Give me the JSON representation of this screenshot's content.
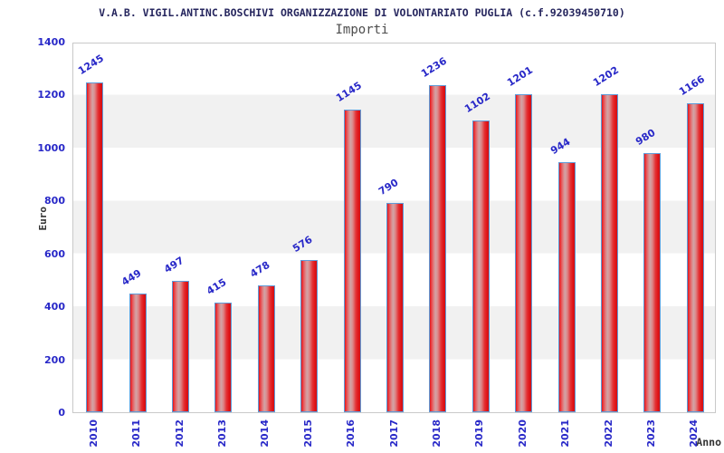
{
  "header": {
    "title": "V.A.B. VIGIL.ANTINC.BOSCHIVI ORGANIZZAZIONE DI VOLONTARIATO PUGLIA (c.f.92039450710)",
    "subtitle": "Importi"
  },
  "chart_data": {
    "type": "bar",
    "title": "Importi",
    "categories": [
      "2010",
      "2011",
      "2012",
      "2013",
      "2014",
      "2015",
      "2016",
      "2017",
      "2018",
      "2019",
      "2020",
      "2021",
      "2022",
      "2023",
      "2024"
    ],
    "values": [
      1245,
      449,
      497,
      415,
      478,
      576,
      1145,
      790,
      1236,
      1102,
      1201,
      944,
      1202,
      980,
      1166
    ],
    "xlabel": "Anno",
    "ylabel": "Euro",
    "ylim": [
      0,
      1400
    ],
    "yticks": [
      0,
      200,
      400,
      600,
      800,
      1000,
      1200,
      1400
    ],
    "grid": "alternating horizontal bands, no vertical gridlines",
    "legend_position": "none",
    "bar_labels_rotation_deg": -32,
    "x_tick_rotation_deg": -90
  },
  "colors": {
    "title_text": "#26265e",
    "subtitle_text": "#4d4d4d",
    "tick_and_value_labels": "#2828c8",
    "axis_titles": "#333333",
    "bar_red": "#e01418",
    "bar_highlight": "#d2a4a6",
    "bar_border": "#5e9bd8",
    "band_gray": "#f1f1f1",
    "plot_border": "#c9c9c9",
    "background": "#ffffff"
  }
}
